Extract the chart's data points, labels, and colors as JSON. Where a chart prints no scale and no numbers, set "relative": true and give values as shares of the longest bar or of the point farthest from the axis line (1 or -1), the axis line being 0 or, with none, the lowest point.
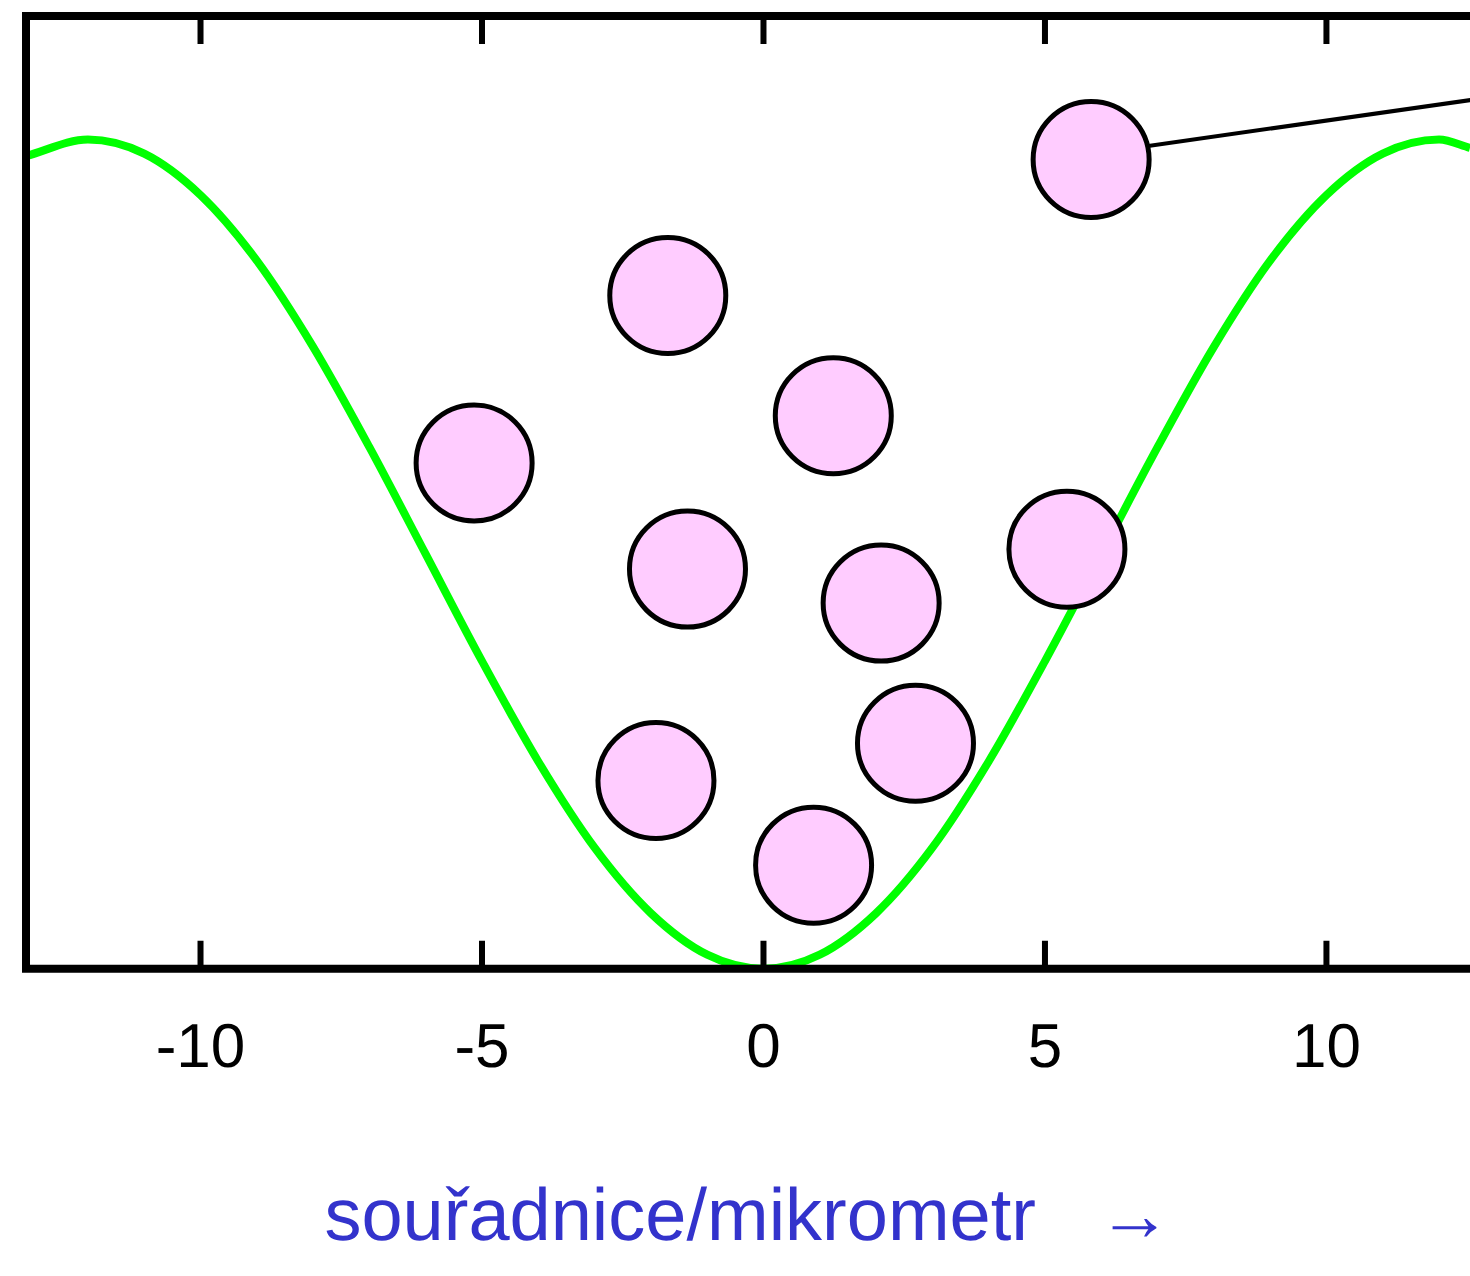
{
  "chart_data": {
    "type": "line",
    "xlabel": "souřadnice/mikrometr   →",
    "xlim": [
      -13.1,
      12.55
    ],
    "xticks": [
      -10,
      -5,
      0,
      5,
      10
    ],
    "relative": true,
    "grid": false,
    "legend": false,
    "series": [
      {
        "color": "#00ff00",
        "marker": "none",
        "x": [
          -13.1,
          -12,
          -11,
          -10,
          -9,
          -8,
          -7,
          -6,
          -5,
          -4,
          -3,
          -2,
          -1,
          0,
          1,
          2,
          3,
          4,
          5,
          6,
          7,
          8,
          9,
          10,
          11,
          12,
          12.55
        ],
        "values": [
          0.98,
          1,
          0.983,
          0.933,
          0.854,
          0.75,
          0.629,
          0.5,
          0.371,
          0.25,
          0.146,
          0.067,
          0.017,
          0,
          0.017,
          0.067,
          0.146,
          0.25,
          0.371,
          null,
          0.629,
          0.75,
          0.854,
          0.933,
          0.983,
          1,
          0.99
        ]
      },
      {
        "type": "scatter",
        "color": "#ffccff",
        "marker": "circle",
        "x": [
          5.82,
          -1.7,
          1.24,
          -5.14,
          -1.35,
          5.39,
          2.09,
          2.7,
          -1.91,
          0.89
        ],
        "values": [
          0.976,
          0.812,
          0.667,
          0.61,
          0.482,
          0.506,
          0.441,
          0.272,
          0.227,
          0.125
        ]
      }
    ]
  }
}
